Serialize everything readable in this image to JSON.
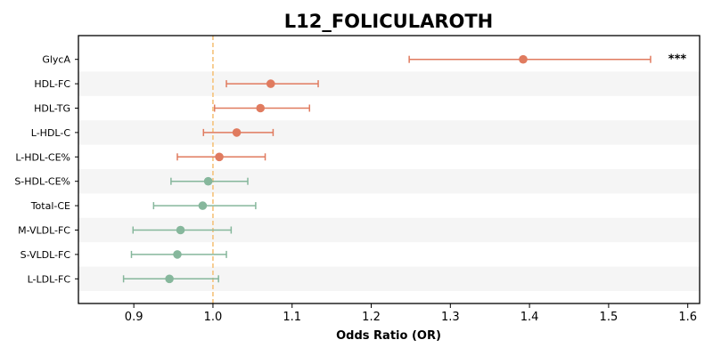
{
  "chart_data": {
    "type": "scatter",
    "subtype": "forest-plot",
    "title": "L12_FOLICULAROTH",
    "xlabel": "Odds Ratio (OR)",
    "ylabel": "",
    "xlim": [
      0.83,
      1.615
    ],
    "xticks": [
      0.9,
      1.0,
      1.1,
      1.2,
      1.3,
      1.4,
      1.5,
      1.6
    ],
    "xtick_labels": [
      "0.9",
      "1.0",
      "1.1",
      "1.2",
      "1.3",
      "1.4",
      "1.5",
      "1.6"
    ],
    "reference_line": 1.0,
    "reference_color": "#f5c27a",
    "grid": false,
    "alternating_row_shading": true,
    "colors": {
      "positive": "#e07b5f",
      "negative": "#86b79c"
    },
    "rows": [
      {
        "label": "GlycA",
        "or": 1.392,
        "lower": 1.248,
        "upper": 1.553,
        "direction": "positive",
        "annotation": "***"
      },
      {
        "label": "HDL-FC",
        "or": 1.073,
        "lower": 1.017,
        "upper": 1.133,
        "direction": "positive",
        "annotation": ""
      },
      {
        "label": "HDL-TG",
        "or": 1.06,
        "lower": 1.002,
        "upper": 1.122,
        "direction": "positive",
        "annotation": ""
      },
      {
        "label": "L-HDL-C",
        "or": 1.03,
        "lower": 0.988,
        "upper": 1.076,
        "direction": "positive",
        "annotation": ""
      },
      {
        "label": "L-HDL-CE%",
        "or": 1.008,
        "lower": 0.955,
        "upper": 1.066,
        "direction": "positive",
        "annotation": ""
      },
      {
        "label": "S-HDL-CE%",
        "or": 0.994,
        "lower": 0.947,
        "upper": 1.044,
        "direction": "negative",
        "annotation": ""
      },
      {
        "label": "Total-CE",
        "or": 0.987,
        "lower": 0.925,
        "upper": 1.054,
        "direction": "negative",
        "annotation": ""
      },
      {
        "label": "M-VLDL-FC",
        "or": 0.959,
        "lower": 0.899,
        "upper": 1.023,
        "direction": "negative",
        "annotation": ""
      },
      {
        "label": "S-VLDL-FC",
        "or": 0.955,
        "lower": 0.897,
        "upper": 1.017,
        "direction": "negative",
        "annotation": ""
      },
      {
        "label": "L-LDL-FC",
        "or": 0.945,
        "lower": 0.887,
        "upper": 1.007,
        "direction": "negative",
        "annotation": ""
      }
    ]
  }
}
